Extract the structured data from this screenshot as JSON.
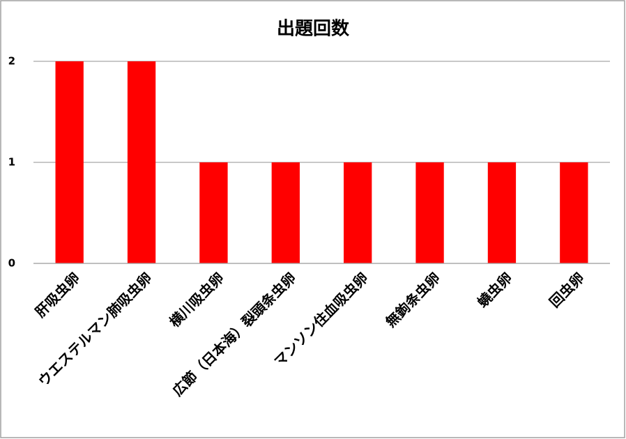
{
  "chart_data": {
    "type": "bar",
    "title": "出題回数",
    "categories": [
      "肝吸虫卵",
      "ウエステルマン肺吸虫卵",
      "横川吸虫卵",
      "広節（日本海）裂頭条虫卵",
      "マンソン住血吸虫卵",
      "無鉤条虫卵",
      "蟯虫卵",
      "回虫卵"
    ],
    "values": [
      2,
      2,
      1,
      1,
      1,
      1,
      1,
      1
    ],
    "color": "#ff0000",
    "ylim": [
      0,
      2
    ],
    "yticks": [
      0,
      1,
      2
    ],
    "grid": true
  }
}
